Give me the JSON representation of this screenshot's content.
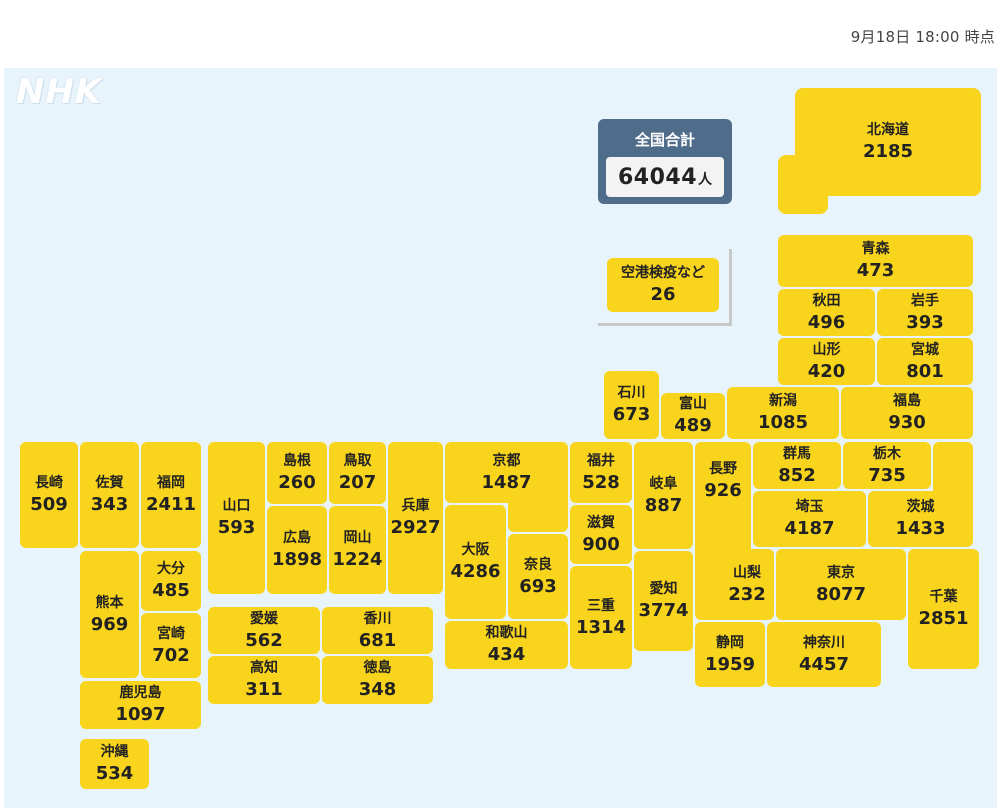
{
  "timestamp": "9月18日 18:00 時点",
  "logo": "NHK",
  "total": {
    "label": "全国合計",
    "value": "64044",
    "unit": "人"
  },
  "prefectures": {
    "airport": {
      "name": "空港検疫など",
      "count": "26"
    },
    "hokkaido": {
      "name": "北海道",
      "count": "2185"
    },
    "aomori": {
      "name": "青森",
      "count": "473"
    },
    "akita": {
      "name": "秋田",
      "count": "496"
    },
    "iwate": {
      "name": "岩手",
      "count": "393"
    },
    "yamagata": {
      "name": "山形",
      "count": "420"
    },
    "miyagi": {
      "name": "宮城",
      "count": "801"
    },
    "ishikawa": {
      "name": "石川",
      "count": "673"
    },
    "toyama": {
      "name": "富山",
      "count": "489"
    },
    "niigata": {
      "name": "新潟",
      "count": "1085"
    },
    "fukushima": {
      "name": "福島",
      "count": "930"
    },
    "nagasaki": {
      "name": "長崎",
      "count": "509"
    },
    "saga": {
      "name": "佐賀",
      "count": "343"
    },
    "fukuoka": {
      "name": "福岡",
      "count": "2411"
    },
    "yamaguchi": {
      "name": "山口",
      "count": "593"
    },
    "shimane": {
      "name": "島根",
      "count": "260"
    },
    "tottori": {
      "name": "鳥取",
      "count": "207"
    },
    "hyogo": {
      "name": "兵庫",
      "count": "2927"
    },
    "kyoto": {
      "name": "京都",
      "count": "1487"
    },
    "fukui": {
      "name": "福井",
      "count": "528"
    },
    "gifu": {
      "name": "岐阜",
      "count": "887"
    },
    "nagano": {
      "name": "長野",
      "count": "926"
    },
    "gunma": {
      "name": "群馬",
      "count": "852"
    },
    "tochigi": {
      "name": "栃木",
      "count": "735"
    },
    "hiroshima": {
      "name": "広島",
      "count": "1898"
    },
    "okayama": {
      "name": "岡山",
      "count": "1224"
    },
    "osaka": {
      "name": "大阪",
      "count": "4286"
    },
    "nara": {
      "name": "奈良",
      "count": "693"
    },
    "shiga": {
      "name": "滋賀",
      "count": "900"
    },
    "saitama": {
      "name": "埼玉",
      "count": "4187"
    },
    "ibaraki": {
      "name": "茨城",
      "count": "1433"
    },
    "kumamoto": {
      "name": "熊本",
      "count": "969"
    },
    "oita": {
      "name": "大分",
      "count": "485"
    },
    "miyazaki": {
      "name": "宮崎",
      "count": "702"
    },
    "ehime": {
      "name": "愛媛",
      "count": "562"
    },
    "kagawa": {
      "name": "香川",
      "count": "681"
    },
    "kochi": {
      "name": "高知",
      "count": "311"
    },
    "tokushima": {
      "name": "徳島",
      "count": "348"
    },
    "wakayama": {
      "name": "和歌山",
      "count": "434"
    },
    "mie": {
      "name": "三重",
      "count": "1314"
    },
    "aichi": {
      "name": "愛知",
      "count": "3774"
    },
    "yamanashi": {
      "name": "山梨",
      "count": "232"
    },
    "tokyo": {
      "name": "東京",
      "count": "8077"
    },
    "chiba": {
      "name": "千葉",
      "count": "2851"
    },
    "shizuoka": {
      "name": "静岡",
      "count": "1959"
    },
    "kanagawa": {
      "name": "神奈川",
      "count": "4457"
    },
    "kagoshima": {
      "name": "鹿児島",
      "count": "1097"
    },
    "okinawa": {
      "name": "沖縄",
      "count": "534"
    }
  }
}
